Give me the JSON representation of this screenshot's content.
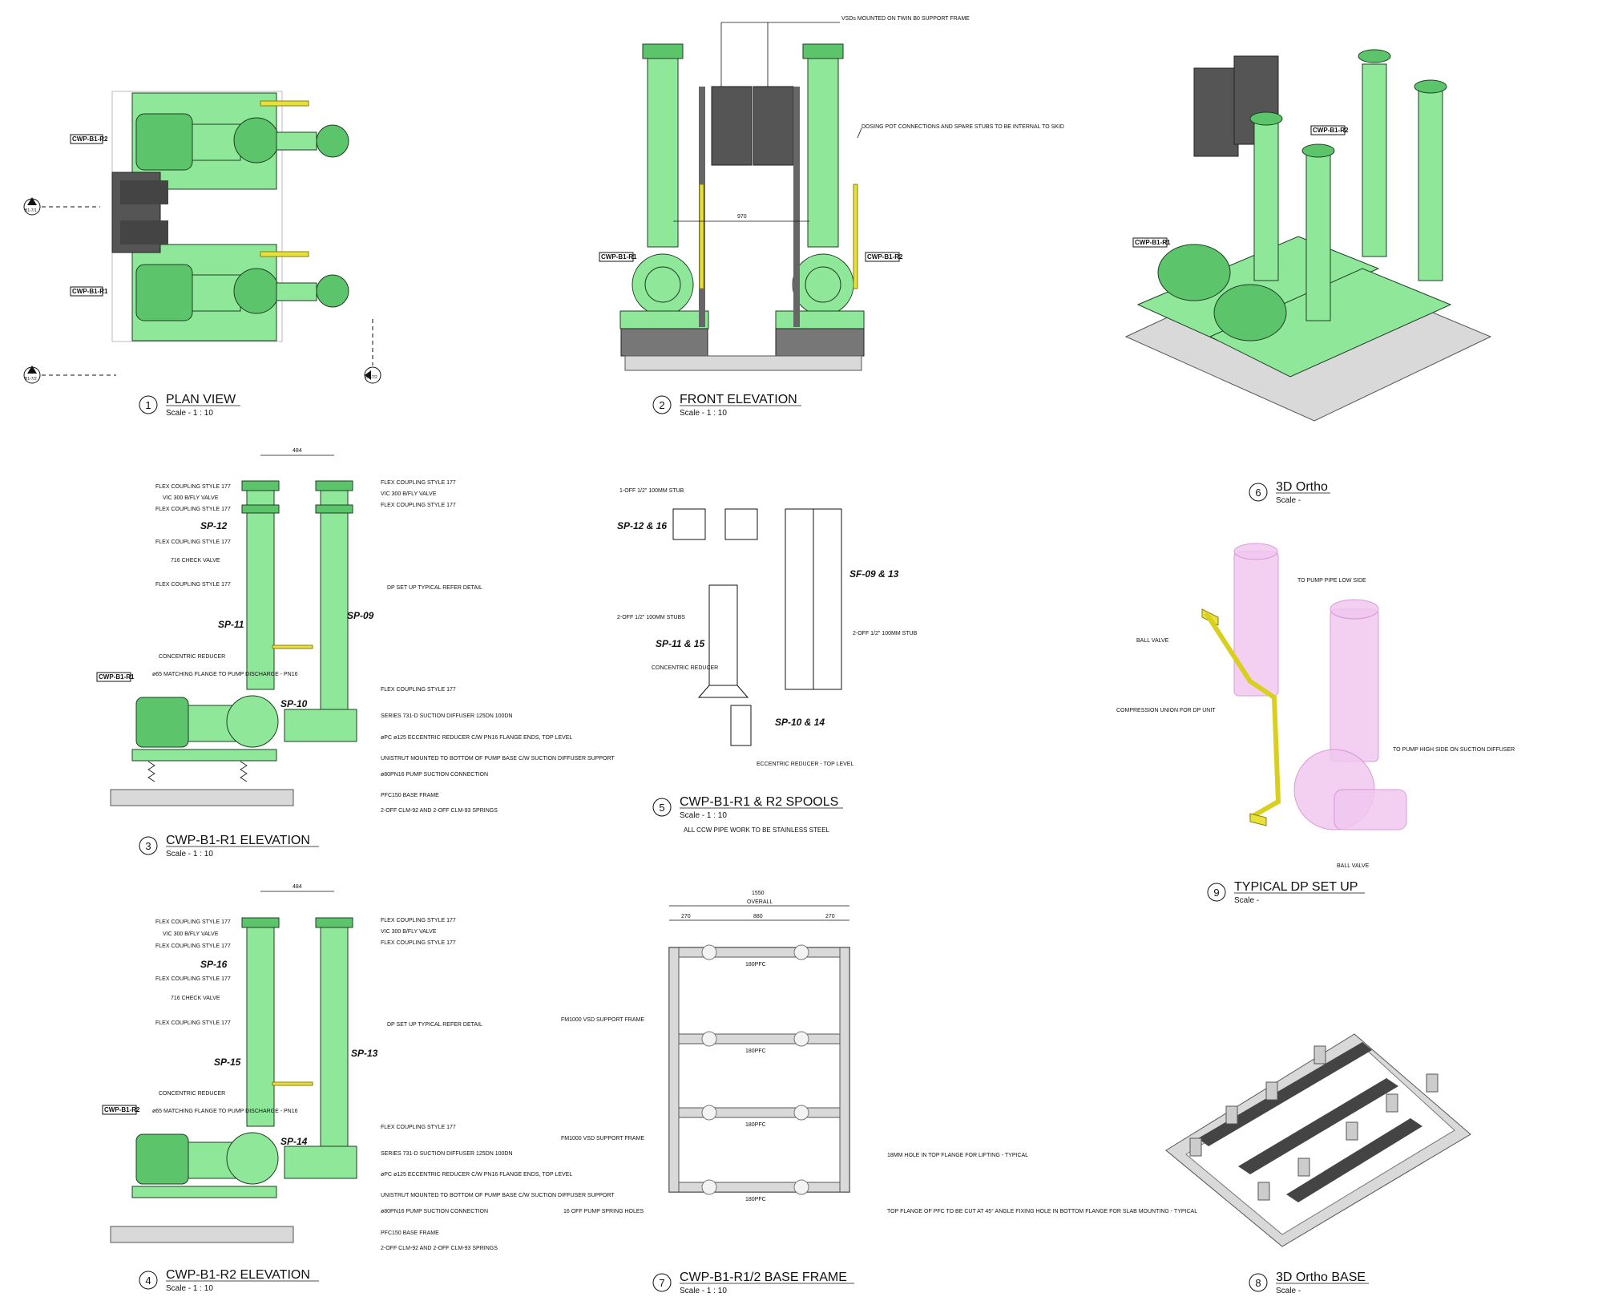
{
  "views": [
    {
      "num": "1",
      "title": "PLAN VIEW",
      "scale": "Scale - 1 : 10"
    },
    {
      "num": "2",
      "title": "FRONT ELEVATION",
      "scale": "Scale - 1 : 10"
    },
    {
      "num": "6",
      "title": "3D Ortho",
      "scale": "Scale -"
    },
    {
      "num": "3",
      "title": "CWP-B1-R1 ELEVATION",
      "scale": "Scale - 1 : 10"
    },
    {
      "num": "5",
      "title": "CWP-B1-R1 & R2 SPOOLS",
      "scale": "Scale - 1 : 10",
      "note": "ALL CCW PIPE WORK TO BE STAINLESS STEEL"
    },
    {
      "num": "9",
      "title": "TYPICAL DP SET UP",
      "scale": "Scale -"
    },
    {
      "num": "4",
      "title": "CWP-B1-R2 ELEVATION",
      "scale": "Scale - 1 : 10"
    },
    {
      "num": "7",
      "title": "CWP-B1-R1/2 BASE FRAME",
      "scale": "Scale - 1 : 10"
    },
    {
      "num": "8",
      "title": "3D Ortho BASE",
      "scale": "Scale -"
    }
  ],
  "tags": {
    "r1": "CWP-B1-R1",
    "r2": "CWP-B1-R2"
  },
  "section_markers": {
    "a": "B1-7/1",
    "b": "B1-7/2"
  },
  "spools": {
    "sp12": "SP-12",
    "sp11": "SP-11",
    "sp09": "SP-09",
    "sp10": "SP-10",
    "sp16": "SP-16",
    "sp15": "SP-15",
    "sp13": "SP-13",
    "sp14": "SP-14",
    "sp1216": "SP-12 & 16",
    "sp0913": "SF-09 & 13",
    "sp1115": "SP-11 & 15",
    "sp1014": "SP-10 & 14"
  },
  "notes": {
    "vsd": "VSDs MOUNTED ON TWIN B0 SUPPORT FRAME",
    "dosing": "DOSING POT CONNECTIONS AND SPARE STUBS TO BE INTERNAL TO SKID",
    "dim_front": "970",
    "dim_484": "484",
    "flex": "FLEX COUPLING STYLE 177",
    "butterfly": "VIC 300 B/FLY VALVE",
    "check": "716 CHECK VALVE",
    "dp": "DP SET UP TYPICAL REFER DETAIL",
    "conc": "CONCENTRIC REDUCER",
    "flange": "ø65 MATCHING FLANGE TO PUMP DISCHARGE - PN16",
    "diffuser": "SERIES 731-D SUCTION DIFFUSER 125DN 100DN",
    "eccentric": "øPC ø125 ECCENTRIC REDUCER C/W PN16 FLANGE ENDS, TOP LEVEL",
    "unistrut": "UNISTRUT MOUNTED TO BOTTOM OF PUMP BASE C/W SUCTION DIFFUSER SUPPORT",
    "suction": "ø80PN16 PUMP SUCTION CONNECTION",
    "pfc": "PFC150 BASE FRAME",
    "springs": "2-OFF CLM-92 AND 2-OFF CLM-93 SPRINGS",
    "stub1": "1-OFF 1/2\" 100MM STUB",
    "stub2": "2-OFF 1/2\" 100MM STUBS",
    "stub3": "2-OFF 1/2\" 100MM STUB",
    "ecc_top": "ECCENTRIC REDUCER - TOP LEVEL",
    "to_low": "TO PUMP PIPE LOW SIDE",
    "ball": "BALL VALVE",
    "comp": "COMPRESSION UNION FOR DP UNIT",
    "to_high": "TO PUMP HIGH SIDE ON SUCTION DIFFUSER",
    "overall": "OVERALL",
    "dim_1550": "1550",
    "dim_270": "270",
    "dim_880": "880",
    "pfc_lbl": "180PFC",
    "vsd_frame": "FM1000 VSD SUPPORT FRAME",
    "spring_holes": "16 OFF PUMP SPRING HOLES",
    "lifting": "18MM HOLE IN TOP FLANGE FOR LIFTING - TYPICAL",
    "top_flange": "TOP FLANGE OF PFC TO BE CUT AT 45° ANGLE FIXING HOLE IN BOTTOM FLANGE FOR SLAB MOUNTING - TYPICAL"
  }
}
